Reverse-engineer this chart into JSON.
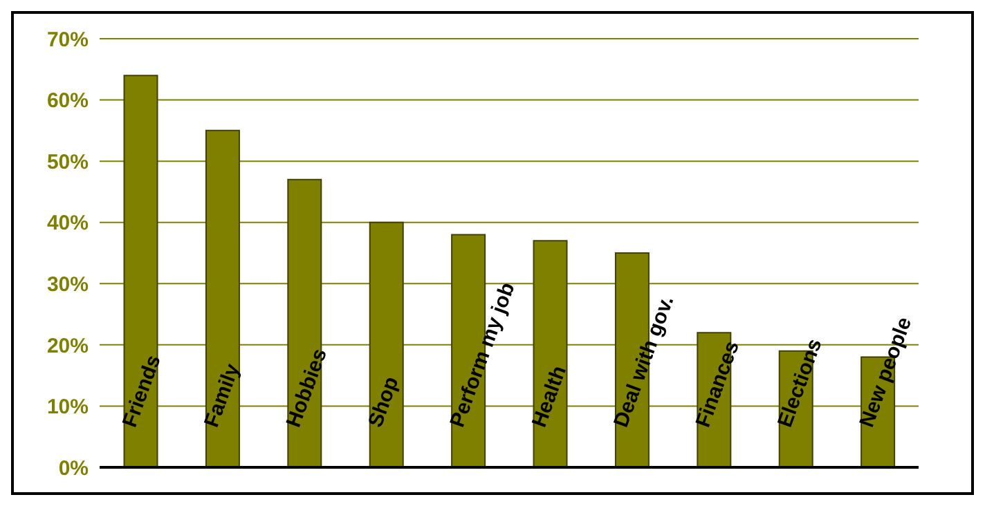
{
  "chart_data": {
    "type": "bar",
    "categories": [
      "Friends",
      "Family",
      "Hobbies",
      "Shop",
      "Perform my job",
      "Health",
      "Deal with gov.",
      "Finances",
      "Elections",
      "New people"
    ],
    "values": [
      64,
      55,
      47,
      40,
      38,
      37,
      35,
      22,
      19,
      18
    ],
    "color": "#808000",
    "ylim": [
      0,
      70
    ],
    "yticks": [
      {
        "value": 0,
        "label": "0%"
      },
      {
        "value": 10,
        "label": "10%"
      },
      {
        "value": 20,
        "label": "20%"
      },
      {
        "value": 30,
        "label": "30%"
      },
      {
        "value": 40,
        "label": "40%"
      },
      {
        "value": 50,
        "label": "50%"
      },
      {
        "value": 60,
        "label": "60%"
      },
      {
        "value": 70,
        "label": "70%"
      }
    ],
    "grid": "y",
    "legend": false
  }
}
